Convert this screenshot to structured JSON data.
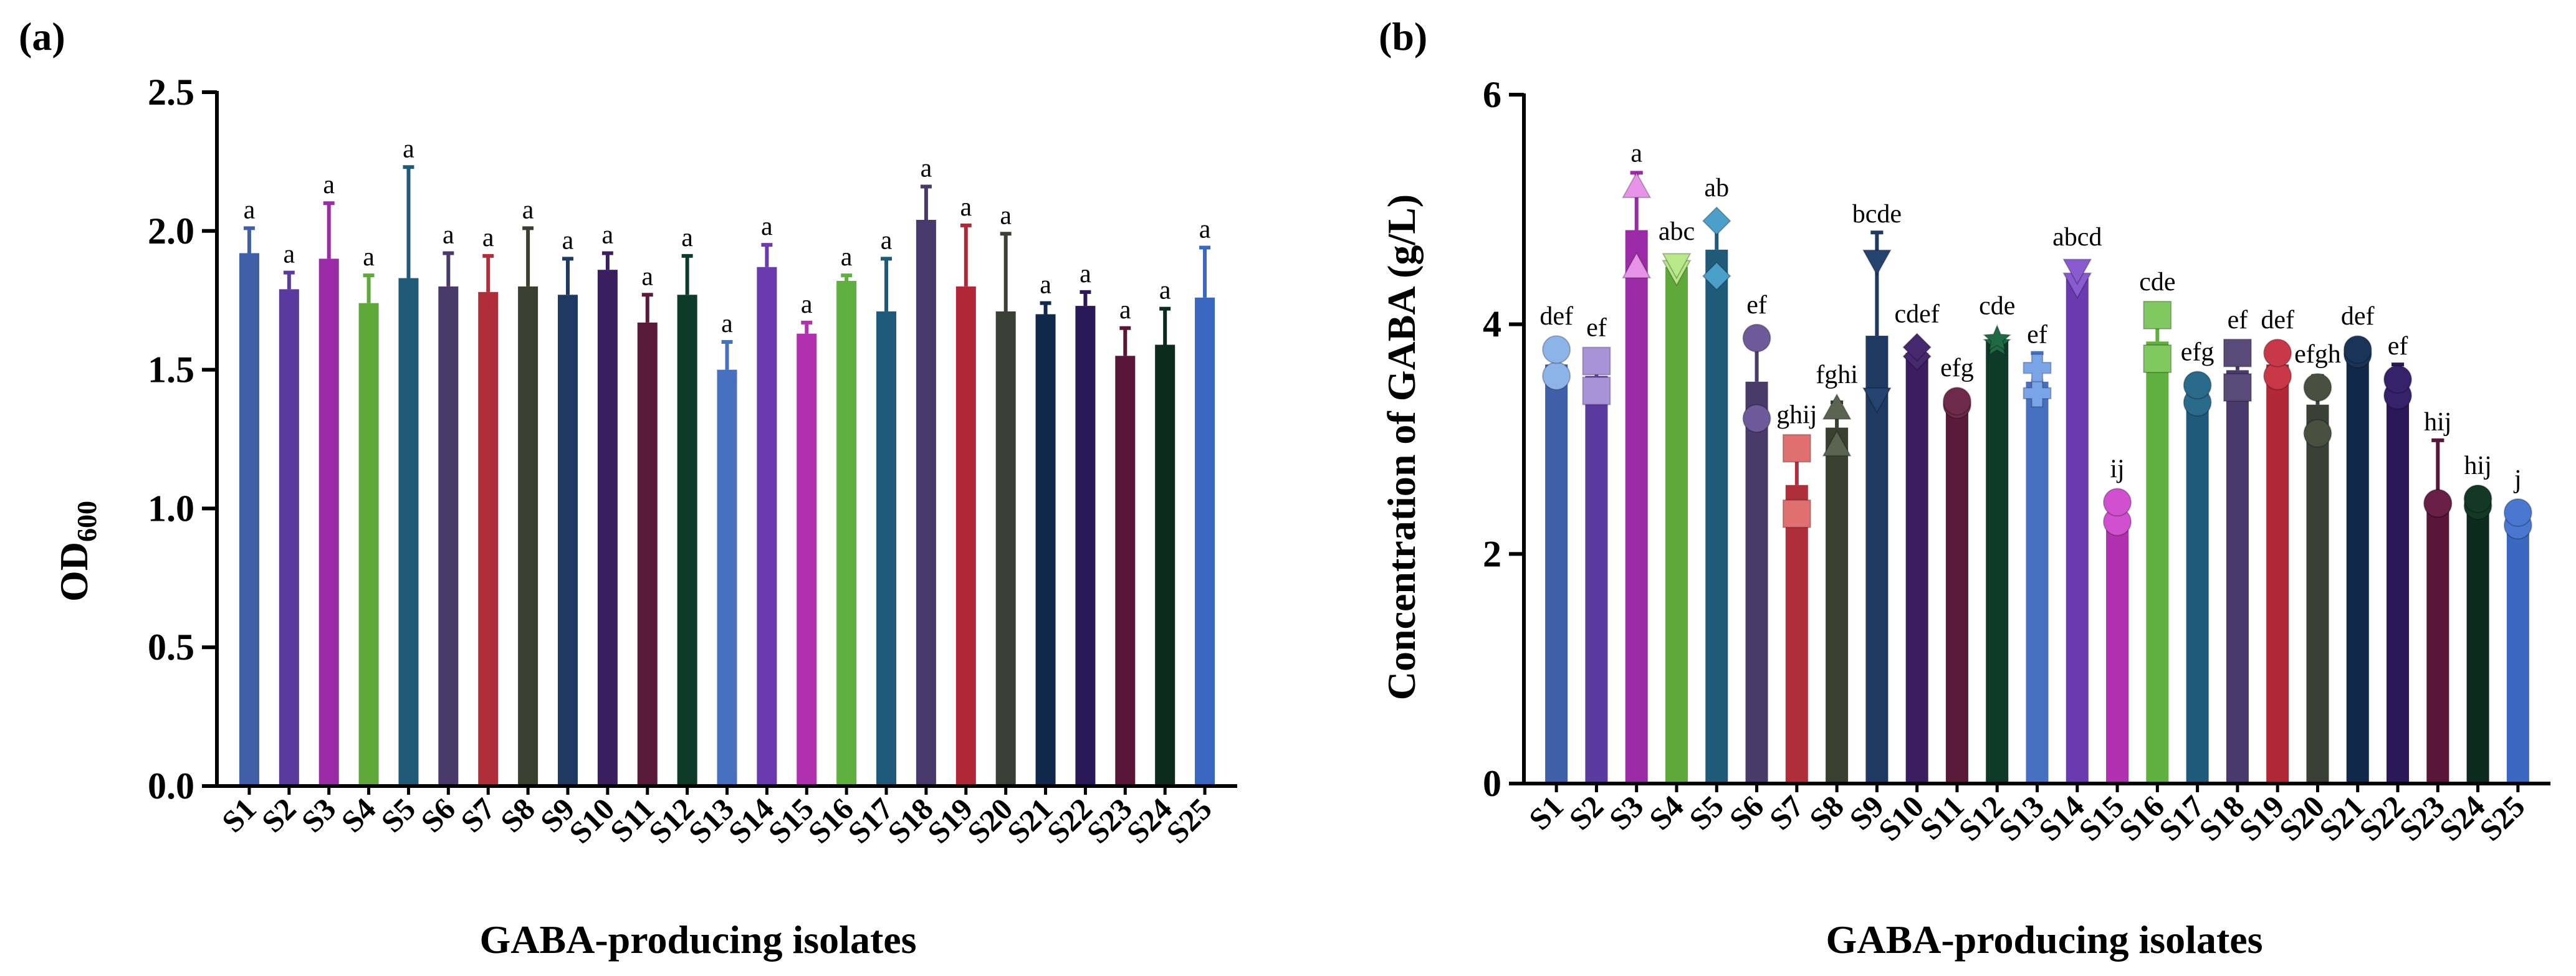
{
  "chart_data": [
    {
      "panel": "(a)",
      "type": "bar",
      "ylabel": "OD",
      "ylabel_sub": "600",
      "xlabel": "GABA-producing isolates",
      "ylim": [
        0,
        2.5
      ],
      "yticks": [
        "0.0",
        "0.5",
        "1.0",
        "1.5",
        "2.0",
        "2.5"
      ],
      "categories": [
        "S1",
        "S2",
        "S3",
        "S4",
        "S5",
        "S6",
        "S7",
        "S8",
        "S9",
        "S10",
        "S11",
        "S12",
        "S13",
        "S14",
        "S15",
        "S16",
        "S17",
        "S18",
        "S19",
        "S20",
        "S21",
        "S22",
        "S23",
        "S24",
        "S25"
      ],
      "values": [
        1.92,
        1.79,
        1.9,
        1.74,
        1.83,
        1.8,
        1.78,
        1.8,
        1.77,
        1.86,
        1.67,
        1.77,
        1.5,
        1.87,
        1.63,
        1.82,
        1.71,
        2.04,
        1.8,
        1.71,
        1.7,
        1.73,
        1.55,
        1.59,
        1.76
      ],
      "errors": [
        0.09,
        0.06,
        0.2,
        0.1,
        0.4,
        0.12,
        0.13,
        0.21,
        0.13,
        0.06,
        0.1,
        0.14,
        0.1,
        0.08,
        0.04,
        0.02,
        0.19,
        0.12,
        0.22,
        0.28,
        0.04,
        0.05,
        0.1,
        0.13,
        0.18
      ],
      "significance": [
        "a",
        "a",
        "a",
        "a",
        "a",
        "a",
        "a",
        "a",
        "a",
        "a",
        "a",
        "a",
        "a",
        "a",
        "a",
        "a",
        "a",
        "a",
        "a",
        "a",
        "a",
        "a",
        "a",
        "a",
        "a"
      ]
    },
    {
      "panel": "(b)",
      "type": "bar",
      "ylabel": "Concentration of GABA (g/L)",
      "xlabel": "GABA-producing isolates",
      "ylim": [
        0,
        6
      ],
      "yticks": [
        "0",
        "2",
        "4",
        "6"
      ],
      "categories": [
        "S1",
        "S2",
        "S3",
        "S4",
        "S5",
        "S6",
        "S7",
        "S8",
        "S9",
        "S10",
        "S11",
        "S12",
        "S13",
        "S14",
        "S15",
        "S16",
        "S17",
        "S18",
        "S19",
        "S20",
        "S21",
        "S22",
        "S23",
        "S24",
        "S25"
      ],
      "values": [
        3.65,
        3.55,
        4.82,
        4.5,
        4.65,
        3.5,
        2.6,
        3.1,
        3.9,
        3.75,
        3.32,
        3.85,
        3.5,
        4.4,
        2.35,
        3.85,
        3.4,
        3.6,
        3.65,
        3.3,
        3.76,
        3.45,
        2.44,
        2.44,
        2.3
      ],
      "errors": [
        0.15,
        0.15,
        0.5,
        0.08,
        0.25,
        0.4,
        0.35,
        0.22,
        0.9,
        0.1,
        0.03,
        0.04,
        0.25,
        0.12,
        0.1,
        0.25,
        0.15,
        0.2,
        0.15,
        0.25,
        0.04,
        0.2,
        0.55,
        0.05,
        0.1
      ],
      "points": [
        [
          3.55,
          3.78
        ],
        [
          3.42,
          3.68
        ],
        [
          4.5,
          5.2
        ],
        [
          4.46,
          4.52
        ],
        [
          4.42,
          4.9
        ],
        [
          3.18,
          3.88
        ],
        [
          2.35,
          2.92
        ],
        [
          2.95,
          3.27
        ],
        [
          3.35,
          4.55
        ],
        [
          3.72,
          3.8
        ],
        [
          3.3,
          3.33
        ],
        [
          3.83,
          3.87
        ],
        [
          3.4,
          3.62
        ],
        [
          4.35,
          4.47
        ],
        [
          2.28,
          2.45
        ],
        [
          3.7,
          4.08
        ],
        [
          3.32,
          3.47
        ],
        [
          3.45,
          3.75
        ],
        [
          3.55,
          3.75
        ],
        [
          3.05,
          3.45
        ],
        [
          3.74,
          3.78
        ],
        [
          3.38,
          3.52
        ],
        [
          2.44,
          2.44
        ],
        [
          2.42,
          2.48
        ],
        [
          2.25,
          2.36
        ]
      ],
      "markers": [
        "circle",
        "square",
        "triangle",
        "triangle-down",
        "diamond",
        "circle",
        "square",
        "triangle",
        "triangle-down",
        "diamond",
        "circle",
        "star",
        "plus",
        "triangle-down",
        "circle",
        "square",
        "circle",
        "square",
        "circle",
        "circle",
        "circle",
        "circle",
        "circle",
        "circle",
        "circle"
      ],
      "significance": [
        "def",
        "ef",
        "a",
        "abc",
        "ab",
        "ef",
        "ghij",
        "fghi",
        "bcde",
        "cdef",
        "efg",
        "cde",
        "ef",
        "abcd",
        "ij",
        "cde",
        "efg",
        "ef",
        "def",
        "efgh",
        "def",
        "ef",
        "hij",
        "hij",
        "j"
      ]
    }
  ],
  "colors": [
    "#3f5fa8",
    "#5b3aa0",
    "#9b2aa6",
    "#5fa83a",
    "#1f5a78",
    "#4a3a6a",
    "#b02e3a",
    "#3a4030",
    "#1e3a63",
    "#3a1e60",
    "#5a1a3a",
    "#0e3a2a",
    "#4870c0",
    "#6a3ab0",
    "#b030b0",
    "#60b040",
    "#1f5a7a",
    "#4a3a6c",
    "#b02838",
    "#3a4036",
    "#12284a",
    "#2a1858",
    "#5a1638",
    "#0c2a1e",
    "#3a68c0"
  ],
  "marker_colors": [
    "#8cb4e8",
    "#a893d8",
    "#e693e8",
    "#b8e888",
    "#4aa0c8",
    "#6e5a9a",
    "#e07070",
    "#5a6450",
    "#26426e",
    "#46286e",
    "#6e2a4a",
    "#1e6a44",
    "#7aa4e8",
    "#8a5ad0",
    "#d050d0",
    "#80c860",
    "#2a6a8a",
    "#5a4a7a",
    "#c83848",
    "#4a5040",
    "#1a3458",
    "#36226a",
    "#6a2046",
    "#143826",
    "#4a78d0"
  ]
}
